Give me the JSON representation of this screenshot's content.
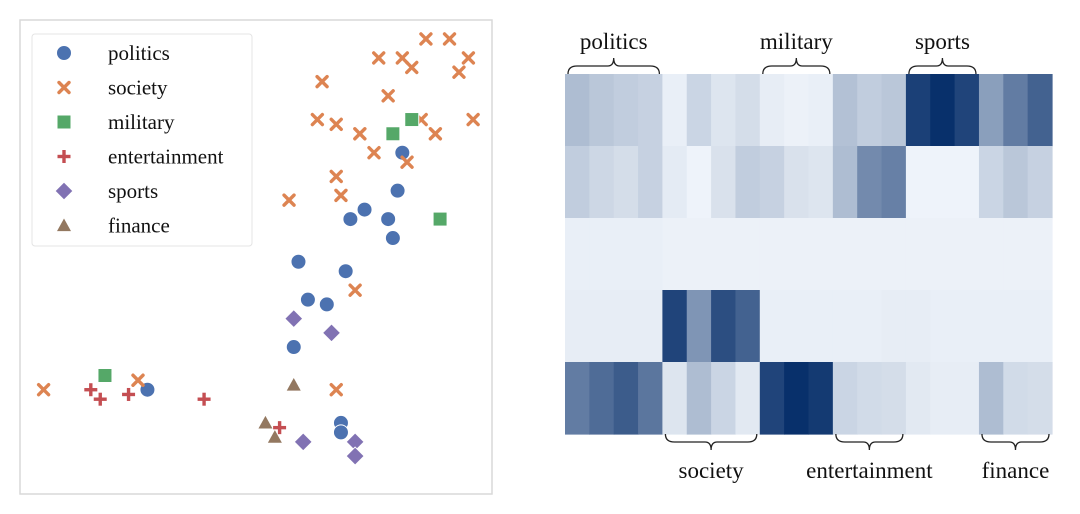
{
  "chart_data": [
    {
      "type": "scatter",
      "legend_position": "top-left",
      "grid": false,
      "xlim": [
        0,
        100
      ],
      "ylim": [
        0,
        100
      ],
      "legend": [
        {
          "name": "politics",
          "marker": "circle",
          "color": "#4c72b0"
        },
        {
          "name": "society",
          "marker": "x",
          "color": "#dd8452"
        },
        {
          "name": "military",
          "marker": "square",
          "color": "#55a868"
        },
        {
          "name": "entertainment",
          "marker": "plus",
          "color": "#c44e52"
        },
        {
          "name": "sports",
          "marker": "diamond",
          "color": "#8172b3"
        },
        {
          "name": "finance",
          "marker": "triangle",
          "color": "#937860"
        }
      ],
      "series": [
        {
          "name": "politics",
          "points": [
            [
              81,
              72
            ],
            [
              80,
              64
            ],
            [
              78,
              58
            ],
            [
              73,
              60
            ],
            [
              70,
              58
            ],
            [
              79,
              54
            ],
            [
              59,
              49
            ],
            [
              69,
              47
            ],
            [
              61,
              41
            ],
            [
              65,
              40
            ],
            [
              58,
              31
            ],
            [
              27,
              22
            ],
            [
              68,
              15
            ],
            [
              68,
              13
            ]
          ]
        },
        {
          "name": "society",
          "points": [
            [
              86,
              96
            ],
            [
              91,
              96
            ],
            [
              76,
              92
            ],
            [
              81,
              92
            ],
            [
              95,
              92
            ],
            [
              83,
              90
            ],
            [
              93,
              89
            ],
            [
              64,
              87
            ],
            [
              78,
              84
            ],
            [
              63,
              79
            ],
            [
              67,
              78
            ],
            [
              85,
              79
            ],
            [
              96,
              79
            ],
            [
              72,
              76
            ],
            [
              88,
              76
            ],
            [
              75,
              72
            ],
            [
              82,
              70
            ],
            [
              67,
              67
            ],
            [
              68,
              63
            ],
            [
              57,
              62
            ],
            [
              71,
              43
            ],
            [
              25,
              24
            ],
            [
              5,
              22
            ],
            [
              67,
              22
            ]
          ]
        },
        {
          "name": "military",
          "points": [
            [
              83,
              79
            ],
            [
              79,
              76
            ],
            [
              89,
              58
            ],
            [
              18,
              25
            ]
          ]
        },
        {
          "name": "entertainment",
          "points": [
            [
              15,
              22
            ],
            [
              17,
              20
            ],
            [
              23,
              21
            ],
            [
              39,
              20
            ],
            [
              55,
              14
            ]
          ]
        },
        {
          "name": "sports",
          "points": [
            [
              58,
              37
            ],
            [
              66,
              34
            ],
            [
              60,
              11
            ],
            [
              71,
              11
            ],
            [
              71,
              8
            ]
          ]
        },
        {
          "name": "finance",
          "points": [
            [
              58,
              23
            ],
            [
              52,
              15
            ],
            [
              54,
              12
            ]
          ]
        }
      ]
    },
    {
      "type": "heatmap",
      "column_groups": [
        {
          "name": "politics",
          "columns": 4
        },
        {
          "name": "society",
          "columns": 4
        },
        {
          "name": "military",
          "columns": 3
        },
        {
          "name": "entertainment",
          "columns": 3
        },
        {
          "name": "sports",
          "columns": 3
        },
        {
          "name": "finance",
          "columns": 3
        }
      ],
      "rows": 5,
      "values": [
        [
          0.3,
          0.25,
          0.22,
          0.2,
          0.05,
          0.18,
          0.1,
          0.14,
          0.06,
          0.04,
          0.05,
          0.28,
          0.22,
          0.25,
          0.92,
          1.0,
          0.9,
          0.45,
          0.62,
          0.75
        ],
        [
          0.22,
          0.17,
          0.14,
          0.2,
          0.07,
          0.03,
          0.12,
          0.22,
          0.2,
          0.12,
          0.1,
          0.3,
          0.55,
          0.6,
          0.03,
          0.03,
          0.03,
          0.18,
          0.25,
          0.2
        ],
        [
          0.05,
          0.05,
          0.05,
          0.05,
          0.04,
          0.04,
          0.04,
          0.04,
          0.04,
          0.04,
          0.04,
          0.04,
          0.04,
          0.04,
          0.04,
          0.04,
          0.04,
          0.04,
          0.04,
          0.04
        ],
        [
          0.06,
          0.06,
          0.06,
          0.06,
          0.9,
          0.5,
          0.85,
          0.75,
          0.05,
          0.05,
          0.05,
          0.05,
          0.05,
          0.06,
          0.06,
          0.05,
          0.05,
          0.05,
          0.05,
          0.05
        ],
        [
          0.62,
          0.7,
          0.78,
          0.65,
          0.1,
          0.3,
          0.18,
          0.08,
          0.9,
          1.0,
          0.95,
          0.18,
          0.15,
          0.14,
          0.08,
          0.06,
          0.06,
          0.3,
          0.15,
          0.14
        ]
      ]
    }
  ]
}
